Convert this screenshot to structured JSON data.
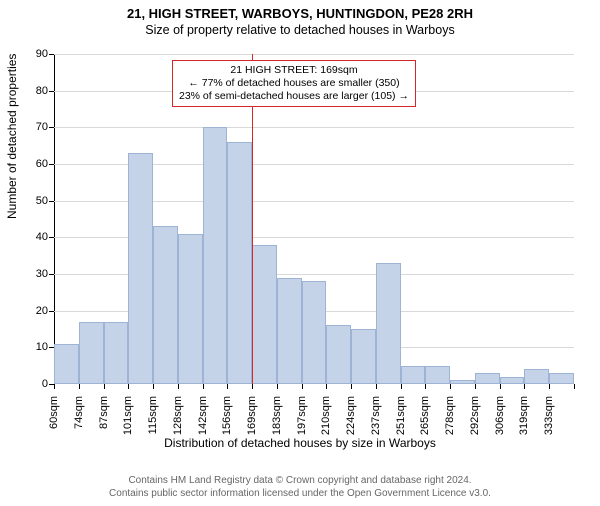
{
  "titles": {
    "line1": "21, HIGH STREET, WARBOYS, HUNTINGDON, PE28 2RH",
    "line2": "Size of property relative to detached houses in Warboys"
  },
  "chart": {
    "type": "histogram",
    "y_axis": {
      "label": "Number of detached properties",
      "min": 0,
      "max": 90,
      "tick_step": 10,
      "label_fontsize": 12,
      "tick_fontsize": 11
    },
    "x_axis": {
      "label": "Distribution of detached houses by size in Warboys",
      "tick_labels": [
        "60sqm",
        "74sqm",
        "87sqm",
        "101sqm",
        "115sqm",
        "128sqm",
        "142sqm",
        "156sqm",
        "169sqm",
        "183sqm",
        "197sqm",
        "210sqm",
        "224sqm",
        "237sqm",
        "251sqm",
        "265sqm",
        "278sqm",
        "292sqm",
        "306sqm",
        "319sqm",
        "333sqm"
      ],
      "label_fontsize": 12,
      "tick_fontsize": 11
    },
    "bars": {
      "values": [
        11,
        17,
        17,
        63,
        43,
        41,
        70,
        66,
        38,
        29,
        28,
        16,
        15,
        33,
        5,
        5,
        1,
        3,
        2,
        4,
        3
      ],
      "fill_color": "#c5d3e8",
      "border_color": "#9fb4d4",
      "bar_width_fraction": 1.0
    },
    "marker_line": {
      "position_index": 8,
      "color": "#d62728"
    },
    "grid_color": "#d9d9d9",
    "background_color": "#ffffff"
  },
  "annotation": {
    "line1": "21 HIGH STREET: 169sqm",
    "line2": "← 77% of detached houses are smaller (350)",
    "line3": "23% of semi-detached houses are larger (105) →",
    "border_color": "#d62728",
    "background_color": "#ffffff",
    "fontsize": 10.5
  },
  "footer": {
    "line1": "Contains HM Land Registry data © Crown copyright and database right 2024.",
    "line2": "Contains public sector information licensed under the Open Government Licence v3.0.",
    "color": "#666666",
    "fontsize": 10
  }
}
